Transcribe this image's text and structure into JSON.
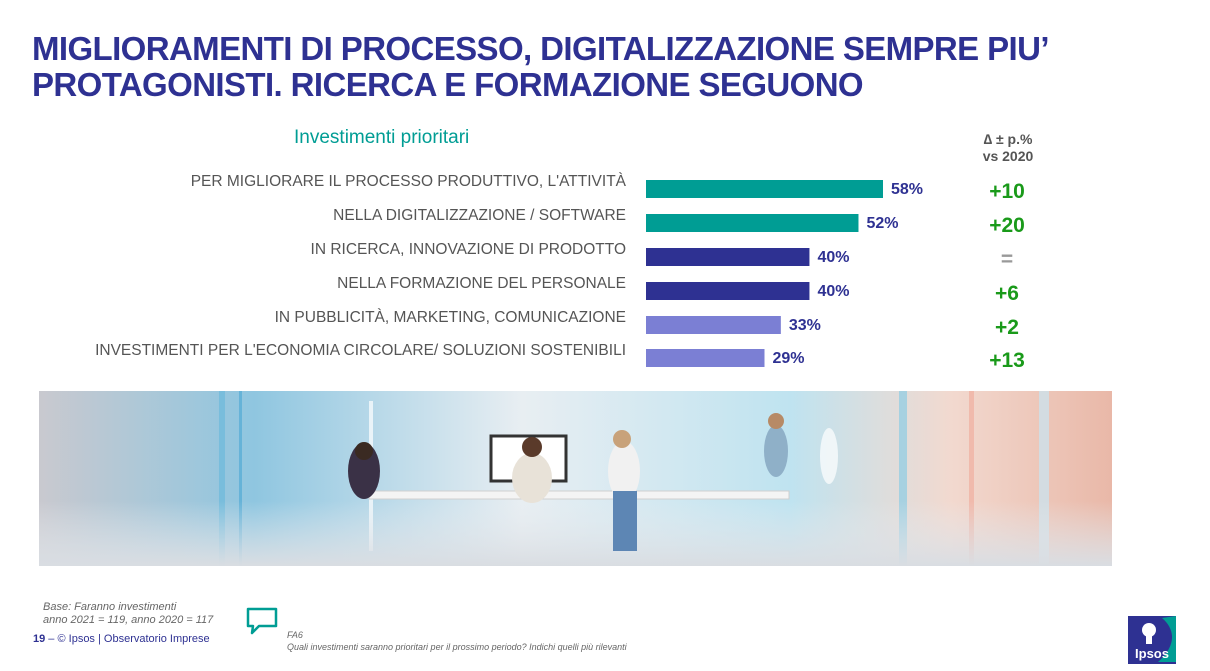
{
  "header": {
    "title_line1": "MIGLIORAMENTI DI PROCESSO, DIGITALIZZAZIONE SEMPRE PIU’",
    "title_line2": "PROTAGONISTI. RICERCA E FORMAZIONE SEGUONO"
  },
  "delta_header": {
    "line1": "∆ ± p.%",
    "line2": "vs 2020"
  },
  "colors": {
    "title": "#2e3192",
    "teal": "#009d94",
    "navy": "#2e3192",
    "lavender": "#7b7fd4",
    "delta_green": "#1a9a1a",
    "delta_neutral": "#999999",
    "label_gray": "#555555"
  },
  "chart_data": {
    "type": "bar",
    "orientation": "horizontal",
    "title": "Investimenti prioritari",
    "categories": [
      "PER MIGLIORARE IL PROCESSO PRODUTTIVO, L'ATTIVITÀ",
      "NELLA DIGITALIZZAZIONE / SOFTWARE",
      "IN RICERCA, INNOVAZIONE DI PRODOTTO",
      "NELLA FORMAZIONE DEL PERSONALE",
      "IN PUBBLICITÀ, MARKETING, COMUNICAZIONE",
      "INVESTIMENTI PER L'ECONOMIA CIRCOLARE/ SOLUZIONI SOSTENIBILI"
    ],
    "values": [
      58,
      52,
      40,
      40,
      33,
      29
    ],
    "value_labels": [
      "58%",
      "52%",
      "40%",
      "40%",
      "33%",
      "29%"
    ],
    "bar_colors": [
      "teal",
      "teal",
      "navy",
      "navy",
      "lavender",
      "lavender"
    ],
    "deltas": [
      "+10",
      "+20",
      "=",
      "+6",
      "+2",
      "+13"
    ],
    "xlim": [
      0,
      100
    ],
    "xlabel": "",
    "ylabel": ""
  },
  "footer": {
    "base_line1": "Base: Faranno investimenti",
    "base_line2": "anno 2021 = 119, anno 2020 = 117",
    "page_number": "19",
    "page_sep": " – ",
    "copyright": "© Ipsos | Observatorio Imprese",
    "question_code": "FA6",
    "question_text": "Quali investimenti saranno prioritari per il prossimo periodo? Indichi quelli più rilevanti"
  },
  "logo": {
    "text": "Ipsos"
  }
}
